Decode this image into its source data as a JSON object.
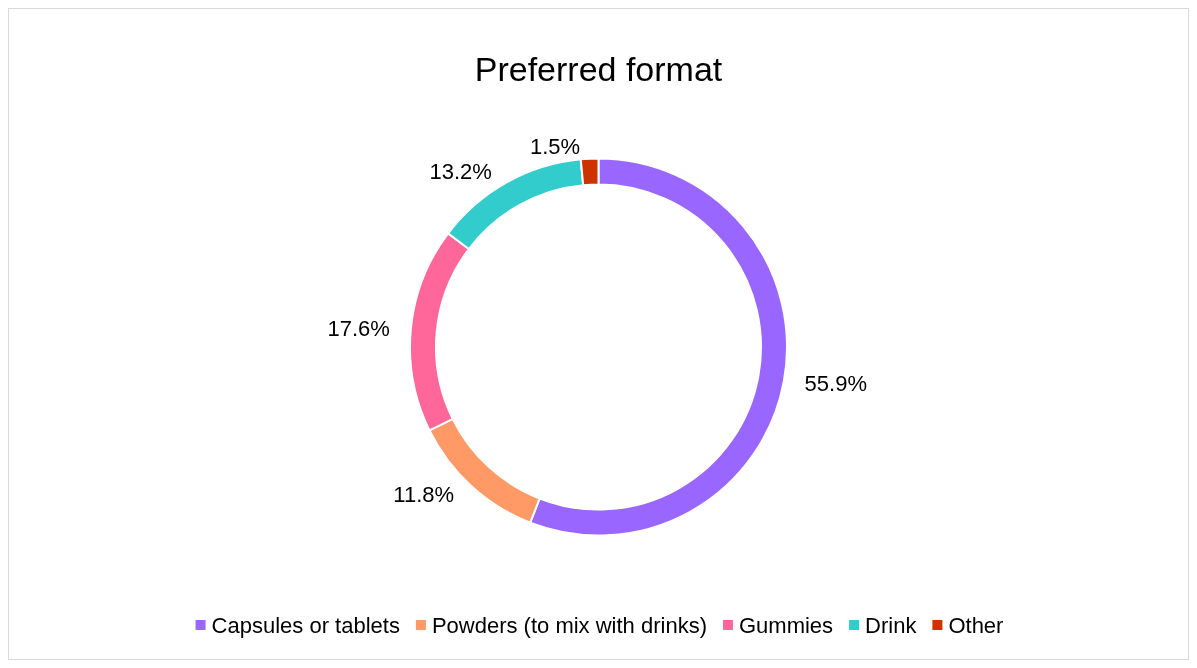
{
  "chart_data": {
    "type": "donut",
    "title": "Preferred format",
    "categories": [
      "Capsules or tablets",
      "Powders (to mix with drinks)",
      "Gummies",
      "Drink",
      "Other"
    ],
    "values": [
      55.9,
      11.8,
      17.6,
      13.2,
      1.5
    ],
    "colors": [
      "#9966ff",
      "#ff9966",
      "#ff6699",
      "#33cccc",
      "#cc3300"
    ],
    "value_labels": [
      "55.9%",
      "11.8%",
      "17.6%",
      "13.2%",
      "1.5%"
    ],
    "legend": "bottom"
  }
}
